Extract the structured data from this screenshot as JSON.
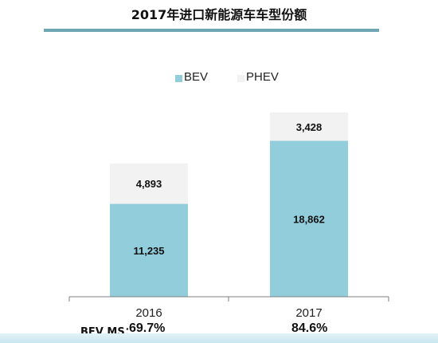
{
  "title": "2017年进口新能源车车型份额",
  "chart_data": {
    "type": "bar",
    "stacked": true,
    "categories": [
      "2016",
      "2017"
    ],
    "series": [
      {
        "name": "BEV",
        "values": [
          11235,
          18862
        ],
        "labels": [
          "11,235",
          "18,862"
        ],
        "color": "#92cddc"
      },
      {
        "name": "PHEV",
        "values": [
          4893,
          3428
        ],
        "labels": [
          "4,893",
          "3,428"
        ],
        "color": "#f2f2f2"
      }
    ],
    "legend_position": "top",
    "grid": false
  },
  "market_share": {
    "label": "BEV MS：",
    "values": [
      "69.7%",
      "84.6%"
    ]
  }
}
